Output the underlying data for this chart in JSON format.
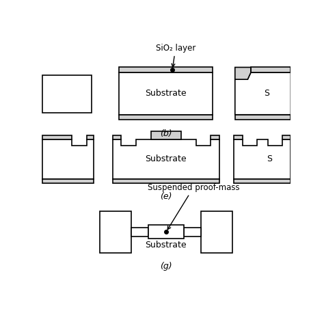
{
  "bg_color": "#ffffff",
  "outline_color": "#000000",
  "fill_white": "#ffffff",
  "fill_gray": "#d0d0d0",
  "lw": 1.2,
  "labels": {
    "b": "(b)",
    "e": "(e)",
    "g": "(g)"
  },
  "annotations": {
    "sio2": "SiO₂ layer",
    "suspended": "Suspended proof-mass",
    "substrate_b": "Substrate",
    "substrate_e": "Substrate",
    "substrate_g": "Substrate"
  }
}
